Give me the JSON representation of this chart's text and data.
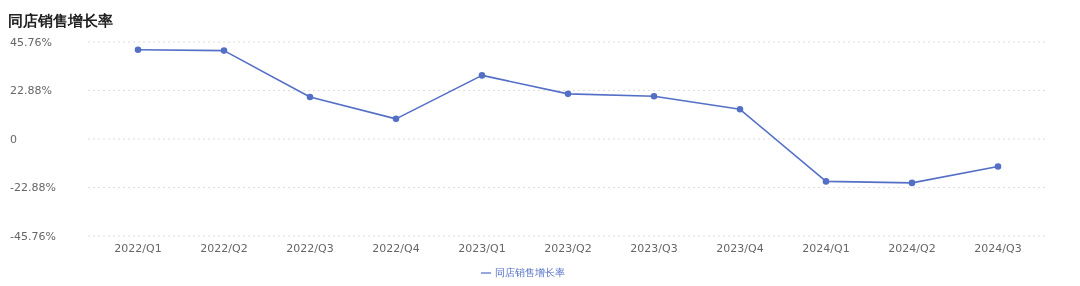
{
  "chart_data": {
    "type": "line",
    "title": "同店销售增长率",
    "categories": [
      "2022/Q1",
      "2022/Q2",
      "2022/Q3",
      "2022/Q4",
      "2023/Q1",
      "2023/Q2",
      "2023/Q3",
      "2023/Q4",
      "2024/Q1",
      "2024/Q2",
      "2024/Q3"
    ],
    "series": [
      {
        "name": "同店销售增长率",
        "color": "#5470c6",
        "values": [
          42.1,
          41.7,
          19.8,
          9.5,
          30.0,
          21.3,
          20.2,
          14.0,
          -20.0,
          -20.7,
          -13.0
        ]
      }
    ],
    "ylim": [
      -45.76,
      45.76
    ],
    "yticks": [
      {
        "value": -45.76,
        "label": "-45.76%"
      },
      {
        "value": -22.88,
        "label": "-22.88%"
      },
      0,
      {
        "value": 22.88,
        "label": "22.88%"
      },
      {
        "value": 45.76,
        "label": "45.76%"
      }
    ],
    "grid": "y",
    "legend": "bottom",
    "marker": "circle",
    "line_style": "solid"
  }
}
